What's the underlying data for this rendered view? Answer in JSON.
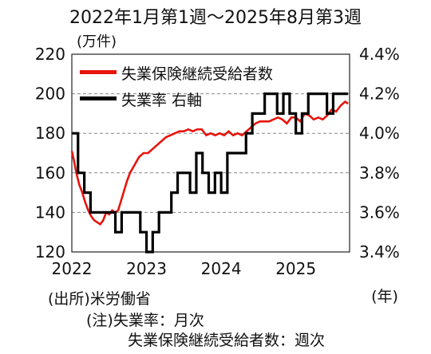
{
  "title": "2022年1月第1週～2025年8月第3週",
  "notes": {
    "source": "(出所)米労働省",
    "note_line1": "(注)失業率：月次",
    "note_line2": "失業保険継続受給者数：週次"
  },
  "chart_data": {
    "type": "line",
    "title": "2022年1月第1週～2025年8月第3週",
    "left_axis": {
      "unit_label": "(万件)",
      "ylim": [
        120,
        220
      ],
      "ticks": [
        "120",
        "140",
        "160",
        "180",
        "200",
        "220"
      ]
    },
    "right_axis": {
      "ylim": [
        3.4,
        4.4
      ],
      "ticks": [
        "3.4%",
        "3.6%",
        "3.8%",
        "4.0%",
        "4.2%",
        "4.4%"
      ]
    },
    "x_axis": {
      "unit_label": "(年)",
      "range": [
        2022.0,
        2025.72
      ],
      "ticks": [
        "2022",
        "2023",
        "2024",
        "2025"
      ]
    },
    "grid": "horizontal dashed",
    "legend": {
      "placement": "top-left"
    },
    "colors": {
      "claims": "#e8140e",
      "unemployment": "#000000"
    },
    "series": [
      {
        "name": "失業保険継続受給者数",
        "axis": "left",
        "x": [
          2022.0,
          2022.03,
          2022.06,
          2022.1,
          2022.14,
          2022.18,
          2022.22,
          2022.26,
          2022.3,
          2022.34,
          2022.38,
          2022.42,
          2022.46,
          2022.5,
          2022.54,
          2022.58,
          2022.62,
          2022.66,
          2022.7,
          2022.74,
          2022.78,
          2022.84,
          2022.9,
          2022.96,
          2023.02,
          2023.08,
          2023.14,
          2023.2,
          2023.26,
          2023.32,
          2023.38,
          2023.44,
          2023.5,
          2023.56,
          2023.62,
          2023.68,
          2023.74,
          2023.8,
          2023.86,
          2023.92,
          2023.98,
          2024.04,
          2024.1,
          2024.16,
          2024.22,
          2024.28,
          2024.34,
          2024.4,
          2024.46,
          2024.52,
          2024.58,
          2024.64,
          2024.7,
          2024.76,
          2024.82,
          2024.88,
          2024.94,
          2025.0,
          2025.06,
          2025.12,
          2025.18,
          2025.24,
          2025.3,
          2025.36,
          2025.42,
          2025.48,
          2025.54,
          2025.6,
          2025.66,
          2025.7
        ],
        "values": [
          171,
          166,
          160,
          154,
          150,
          145,
          141,
          138,
          136,
          135,
          134,
          136,
          140,
          139,
          141,
          140,
          141,
          146,
          151,
          156,
          160,
          164,
          168,
          170,
          170,
          172,
          174,
          176,
          178,
          179,
          180,
          181,
          181,
          182,
          181,
          182,
          182,
          179,
          180,
          179,
          180,
          179,
          181,
          179,
          180,
          179,
          181,
          183,
          185,
          186,
          186,
          186,
          187,
          188,
          187,
          185,
          188,
          188,
          186,
          190,
          189,
          187,
          188,
          187,
          189,
          192,
          191,
          194,
          196,
          195
        ]
      },
      {
        "name": "失業率 右軸",
        "axis": "right",
        "step": true,
        "x": [
          2022.0,
          2022.083,
          2022.167,
          2022.25,
          2022.333,
          2022.417,
          2022.5,
          2022.583,
          2022.667,
          2022.75,
          2022.833,
          2022.917,
          2023.0,
          2023.083,
          2023.167,
          2023.25,
          2023.333,
          2023.417,
          2023.5,
          2023.583,
          2023.667,
          2023.75,
          2023.833,
          2023.917,
          2024.0,
          2024.083,
          2024.167,
          2024.25,
          2024.333,
          2024.417,
          2024.5,
          2024.583,
          2024.667,
          2024.75,
          2024.833,
          2024.917,
          2025.0,
          2025.083,
          2025.167,
          2025.25,
          2025.333,
          2025.417,
          2025.5,
          2025.583
        ],
        "values": [
          4.0,
          3.8,
          3.7,
          3.6,
          3.6,
          3.6,
          3.6,
          3.5,
          3.6,
          3.6,
          3.6,
          3.5,
          3.4,
          3.5,
          3.6,
          3.6,
          3.7,
          3.8,
          3.8,
          3.7,
          3.9,
          3.8,
          3.7,
          3.8,
          3.7,
          3.9,
          3.9,
          3.9,
          4.0,
          4.1,
          4.1,
          4.2,
          4.2,
          4.1,
          4.2,
          4.1,
          4.0,
          4.1,
          4.2,
          4.2,
          4.2,
          4.1,
          4.2,
          4.2
        ]
      }
    ]
  }
}
